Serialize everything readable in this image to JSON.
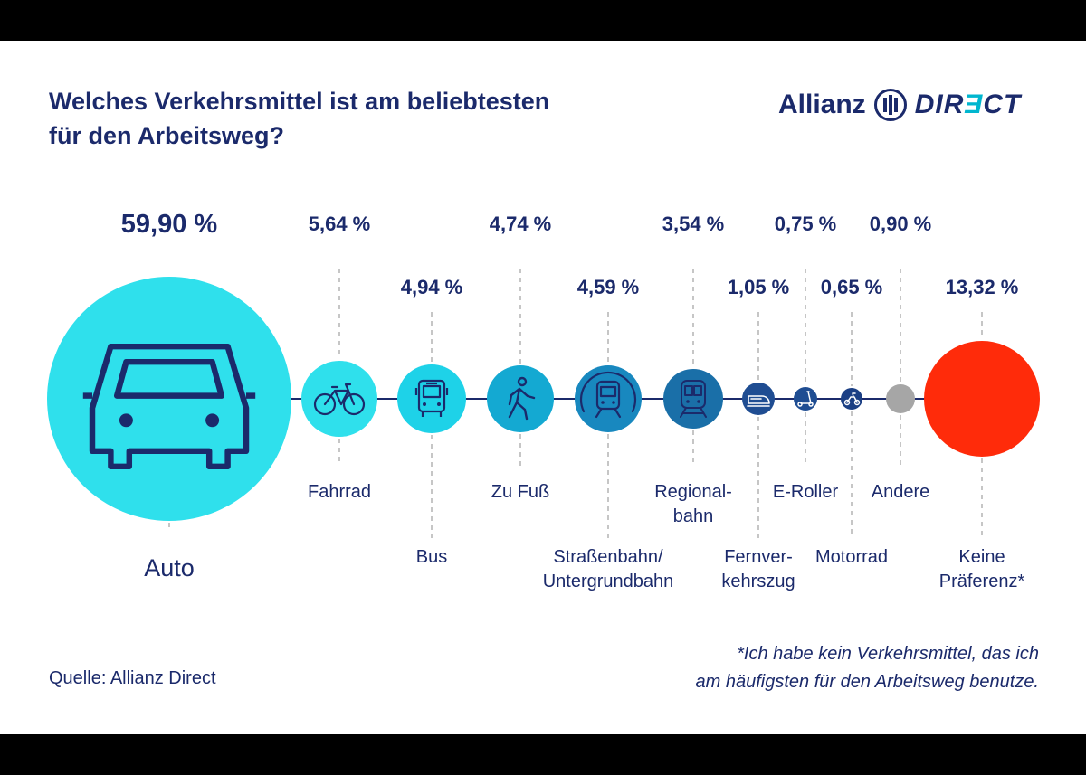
{
  "title_lines": [
    "Welches Verkehrsmittel ist am beliebtesten",
    "für den Arbeitsweg?"
  ],
  "logo": {
    "brand": "Allianz",
    "direct_pre": "DIR",
    "direct_accent": "Ǝ",
    "direct_post": "CT"
  },
  "source": "Quelle: Allianz Direct",
  "footnote_lines": [
    "*Ich habe kein Verkehrsmittel, das ich",
    "am häufigsten für den Arbeitsweg benutze."
  ],
  "colors": {
    "navy": "#1b2a6b",
    "cyan_light": "#2fe0ec",
    "cyan": "#1ed2e8",
    "teal": "#14a9d2",
    "blue": "#1888bf",
    "blue_dark": "#1a6fa8",
    "indigo": "#1f4d92",
    "indigo_dark": "#1b3f84",
    "grey": "#a6a6a6",
    "red": "#ff2b0a"
  },
  "chart_data": {
    "type": "bubble",
    "title": "Welches Verkehrsmittel ist am beliebtesten für den Arbeitsweg?",
    "unit": "%",
    "series": [
      {
        "name": "Auto",
        "label_lines": [
          "Auto"
        ],
        "value": 59.9,
        "value_label": "59,90 %",
        "icon": "car-icon",
        "color": "#2fe0ec"
      },
      {
        "name": "Fahrrad",
        "label_lines": [
          "Fahrrad"
        ],
        "value": 5.64,
        "value_label": "5,64 %",
        "icon": "bicycle-icon",
        "color": "#2fe0ec"
      },
      {
        "name": "Bus",
        "label_lines": [
          "Bus"
        ],
        "value": 4.94,
        "value_label": "4,94 %",
        "icon": "bus-icon",
        "color": "#1ed2e8"
      },
      {
        "name": "Zu Fuß",
        "label_lines": [
          "Zu Fuß"
        ],
        "value": 4.74,
        "value_label": "4,74 %",
        "icon": "walking-icon",
        "color": "#14a9d2"
      },
      {
        "name": "Straßenbahn/Untergrundbahn",
        "label_lines": [
          "Straßenbahn/",
          "Untergrundbahn"
        ],
        "value": 4.59,
        "value_label": "4,59 %",
        "icon": "subway-icon",
        "color": "#1888bf"
      },
      {
        "name": "Regionalbahn",
        "label_lines": [
          "Regional-",
          "bahn"
        ],
        "value": 3.54,
        "value_label": "3,54 %",
        "icon": "regional-train-icon",
        "color": "#1a6fa8"
      },
      {
        "name": "Fernverkehrszug",
        "label_lines": [
          "Fernver-",
          "kehrszug"
        ],
        "value": 1.05,
        "value_label": "1,05 %",
        "icon": "high-speed-train-icon",
        "color": "#1f4d92"
      },
      {
        "name": "E-Roller",
        "label_lines": [
          "E-Roller"
        ],
        "value": 0.75,
        "value_label": "0,75 %",
        "icon": "e-scooter-icon",
        "color": "#1f4d92"
      },
      {
        "name": "Motorrad",
        "label_lines": [
          "Motorrad"
        ],
        "value": 0.65,
        "value_label": "0,65 %",
        "icon": "motorcycle-icon",
        "color": "#1b3f84"
      },
      {
        "name": "Andere",
        "label_lines": [
          "Andere"
        ],
        "value": 0.9,
        "value_label": "0,90 %",
        "icon": "",
        "color": "#a6a6a6"
      },
      {
        "name": "Keine Präferenz*",
        "label_lines": [
          "Keine",
          "Präferenz*"
        ],
        "value": 13.32,
        "value_label": "13,32 %",
        "icon": "",
        "color": "#ff2b0a"
      }
    ]
  }
}
